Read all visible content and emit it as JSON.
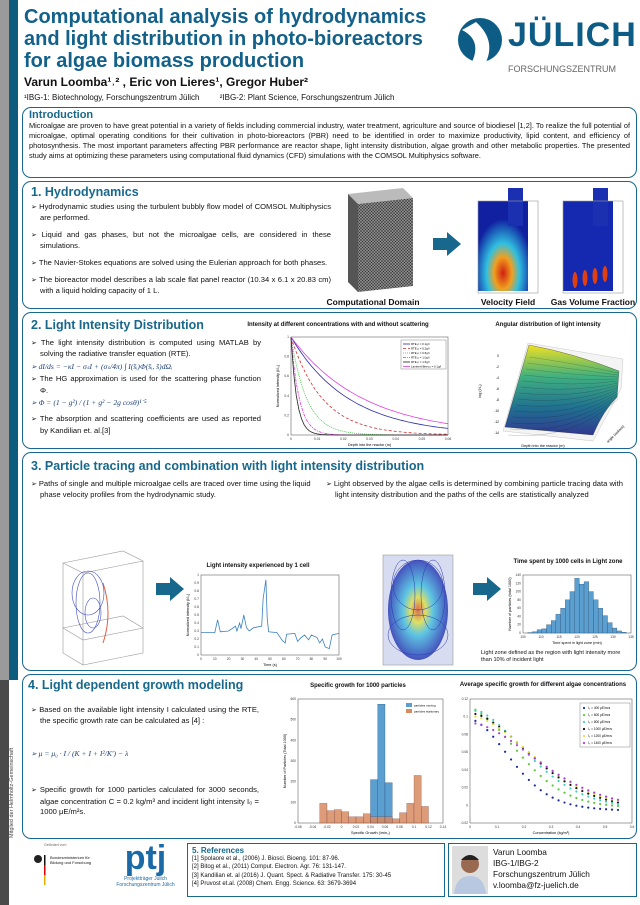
{
  "header": {
    "title": "Computational analysis of hydrodynamics and light distribution in photo-bioreactors for algae biomass production",
    "authors": "Varun Loomba¹˒² , Eric von Lieres¹, Gregor Huber²",
    "affiliations": [
      "¹IBG-1: Biotechnology, Forschungszentrum Jülich",
      "²IBG-2: Plant Science, Forschungszentrum Jülich"
    ],
    "logo": {
      "name": "JÜLICH",
      "sub": "FORSCHUNGSZENTRUM"
    }
  },
  "colors": {
    "accent": "#17688c",
    "stripe_teal": "#0d5c7e",
    "stripe_gray": "#9a9a9a",
    "stripe_dark": "#4a4a4a"
  },
  "side_text": "Mitglied der Helmholtz-Gemeinschaft",
  "intro": {
    "heading": "Introduction",
    "text": "Microalgae are proven to have great potential in a variety of fields including commercial industry, water treatment, agriculture and source of biodiesel [1,2]. To realize the full potential of microalgae, optimal operating conditions for their cultivation in photo-bioreactors (PBR) need to be identified in order to maximize productivity, lipid content, and efficiency of photosynthesis. The most important parameters affecting PBR performance are reactor shape, light intensity distribution, algae growth and other metabolic properties. The presented study aims at optimizing these parameters using computational fluid dynamics (CFD) simulations with the COMSOL Multiphysics software."
  },
  "s1": {
    "heading": "1. Hydrodynamics",
    "bullets": [
      "Hydrodynamic studies using the turbulent bubbly flow model of COMSOL Multiphysics are performed.",
      "Liquid and gas phases, but not the microalgae cells, are considered in these simulations.",
      "The Navier-Stokes equations are solved using the Eulerian approach for both phases.",
      "The bioreactor model describes a lab scale flat panel reactor (10.34 x 6.1 x 20.83 cm) with a liquid holding capacity of 1 L."
    ],
    "captions": [
      "Computational Domain",
      "Velocity Field",
      "Gas Volume Fraction"
    ]
  },
  "s2": {
    "heading": "2. Light Intensity Distribution",
    "bullets": [
      "The light intensity distribution is computed using MATLAB by solving the radiative transfer equation (RTE).",
      "The HG approximation is used for the  scattering phase function Φ.",
      "The absorption and scattering coefficients are used as reported by Kandilian et. al.[3]"
    ],
    "eq1": "dI/ds = −κI − σₛI + (σₛ/4π) ∫ I(s̄ᵢ)Φ(s̄ᵢ, s̄)dΩᵢ",
    "eq2": "Φ = (1 − g²) / (1 + g² − 2g cosθ)¹˙⁵",
    "fig1": {
      "title": "Intensity at different concentrations with and without scattering",
      "xlabel": "Depth into the reactor (m)",
      "ylabel": "Normalized intensity (I/I₀)",
      "xticks": [
        "0",
        "0.01",
        "0.02",
        "0.03",
        "0.04",
        "0.05",
        "0.06"
      ],
      "yticks": [
        "0",
        "0.2",
        "0.4",
        "0.6",
        "0.8",
        "1"
      ],
      "legend": [
        {
          "label": "RTE,c = 0.1g/l",
          "color": "#2a2aa8",
          "dash": ""
        },
        {
          "label": "RTE,c = 0.2g/l",
          "color": "#d03030",
          "dash": "3,2"
        },
        {
          "label": "RTE,c = 0.5g/l",
          "color": "#40c040",
          "dash": "1,1"
        },
        {
          "label": "RTE,c = 1.0g/l",
          "color": "#e030e0",
          "dash": "3,1,1,1"
        },
        {
          "label": "RTE,c = 1.5g/l",
          "color": "#222",
          "dash": ""
        },
        {
          "label": "Lambert-Beer,c = 0.1g/l",
          "color": "#e040e0",
          "dash": ""
        }
      ]
    },
    "fig2": {
      "title": "Angular distribution of light intensity",
      "xlabel": "Depth into the reactor (m)",
      "ylabel": "log (I/I₀)",
      "zlabel": "angle (radians)",
      "yticks": [
        "0",
        "-2",
        "-4",
        "-6",
        "-8",
        "-10",
        "-12",
        "-14"
      ]
    }
  },
  "s3": {
    "heading": "3. Particle tracing and combination with light intensity distribution",
    "bullets_left": [
      "Paths of single and multiple microalgae cells are traced over time using the liquid phase velocity profiles from the hydrodynamic study."
    ],
    "bullets_right": [
      "Light observed by the algae cells is determined by combining particle tracing data with light intensity distribution and the paths of the cells are statistically analyzed"
    ],
    "fig1": {
      "title": "Light intensity experienced by 1 cell",
      "xlabel": "Time (s)",
      "ylabel": "Normalized intensity (I/I₀)",
      "xticks": [
        "0",
        "10",
        "20",
        "30",
        "40",
        "50",
        "60",
        "70",
        "80",
        "90",
        "100"
      ],
      "yticks": [
        "0",
        "0.1",
        "0.2",
        "0.3",
        "0.4",
        "0.5",
        "0.6",
        "0.7",
        "0.8",
        "0.9",
        "1"
      ]
    },
    "fig2": {
      "title": "Time spent by 1000 cells in Light zone",
      "xlabel": "Time spent in light zone (min)",
      "ylabel": "Number of particles (total 1000)",
      "xticks": [
        "100",
        "110",
        "115",
        "120",
        "125",
        "130",
        "135"
      ],
      "yticks": [
        "0",
        "20",
        "40",
        "60",
        "80",
        "100",
        "120",
        "140"
      ]
    },
    "note": "Light zone defined as the region with light intensity more than 10% of incident light"
  },
  "s4": {
    "heading": "4. Light dependent growth modeling",
    "bullets": [
      "Based on the available light intensity I calculated using the RTE, the specific growth rate can be calculated as [4] :",
      "Specific growth for 1000 particles calculated for 3000 seconds, algae concentration C = 0.2 kg/m³ and incident light intensity I₀ = 1000 μE/m²s."
    ],
    "eq": "μ = μ₀ · I / (K + I + I²/K') − λ",
    "fig1": {
      "title": "Specific growth for 1000 particles",
      "xlabel": "Specific Growth (/min₀)",
      "ylabel": "Number of Particles (Total 1000)",
      "xticks": [
        "-0.06",
        "-0.04",
        "-0.02",
        "0",
        "0.02",
        "0.04",
        "0.06",
        "0.08",
        "0.1",
        "0.12",
        "0.14"
      ],
      "yticks": [
        "0",
        "100",
        "200",
        "300",
        "400",
        "500",
        "600"
      ],
      "legend": [
        {
          "label": "particles moving",
          "color": "#5b9fd0"
        },
        {
          "label": "particles stationary",
          "color": "#d98a60"
        }
      ]
    },
    "fig2": {
      "title": "Average specific growth for different algae concentrations",
      "xlabel": "Concentration (kg/m³)",
      "xticks": [
        "0",
        "0.1",
        "0.2",
        "0.3",
        "0.4",
        "0.5",
        "0.6"
      ],
      "yticks": [
        "-0.02",
        "0",
        "0.02",
        "0.04",
        "0.06",
        "0.08",
        "0.1",
        "0.12"
      ],
      "legend": [
        {
          "label": "I₀ = 400 μE/m²s",
          "color": "#1a2aa0"
        },
        {
          "label": "I₀ = 600 μE/m²s",
          "color": "#5ac83a"
        },
        {
          "label": "I₀ = 800 μE/m²s",
          "color": "#40d0c0"
        },
        {
          "label": "I₀ = 1000 μE/m²s",
          "color": "#111111"
        },
        {
          "label": "I₀ = 1200 μE/m²s",
          "color": "#e0e040"
        },
        {
          "label": "I₀ = 1400 μE/m²s",
          "color": "#b040d0"
        }
      ]
    }
  },
  "footer": {
    "funder_small": "Gefördert vom",
    "bmbf": "Bundesministerium für Bildung und Forschung",
    "ptj": {
      "logo": "ptj",
      "sub1": "Projektträger Jülich",
      "sub2": "Forschungszentrum Jülich"
    },
    "refs_heading": "5. References",
    "refs": [
      "[1] Spolaore et al., (2006) J. Biosci. Bioeng. 101: 87-96.",
      "[2] Bitog et al., (2011) Comput. Electron. Agr. 76: 131-147.",
      "[3] Kandilian et. al (2016) J. Quant. Spect. & Radiative Transfer. 175: 30-45",
      "[4] Pruvost et.al. (2008) Chem. Engg. Science. 63: 3679-3694"
    ],
    "contact": {
      "name": "Varun Loomba",
      "dept": "IBG-1/IBG-2",
      "org": "Forschungszentrum Jülich",
      "email": "v.loomba@fz-juelich.de"
    }
  }
}
